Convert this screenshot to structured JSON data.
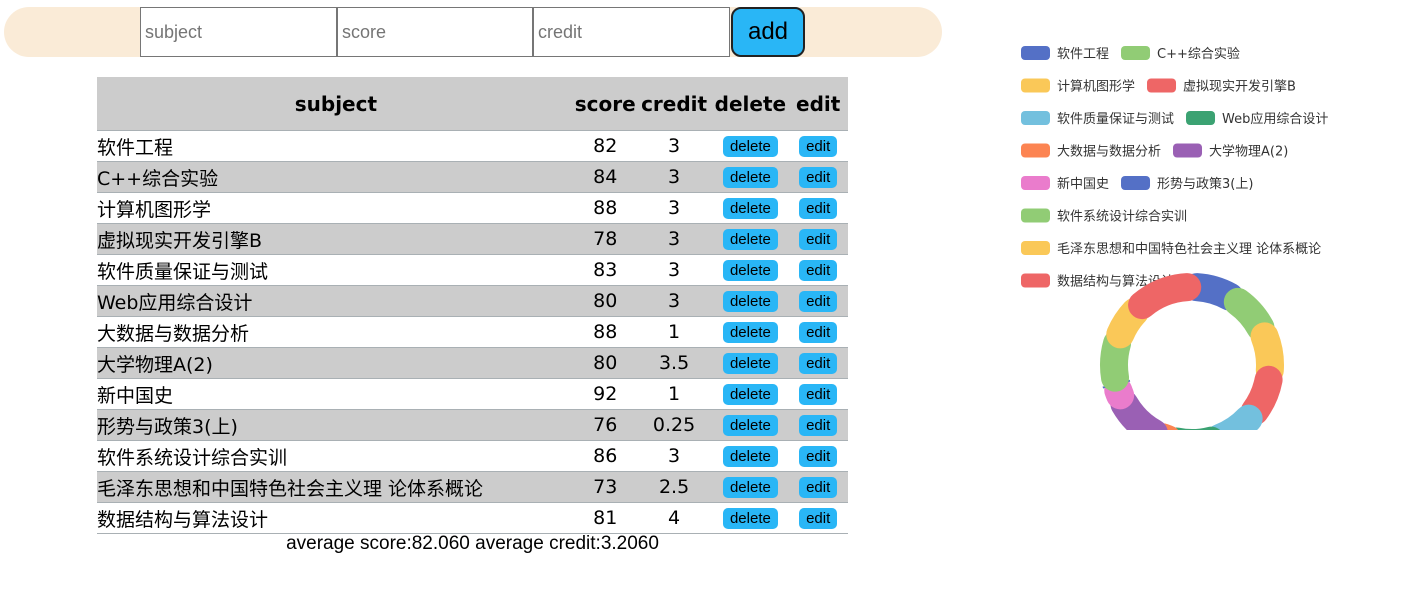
{
  "form": {
    "subject_placeholder": "subject",
    "score_placeholder": "score",
    "credit_placeholder": "credit",
    "add_label": "add"
  },
  "table": {
    "headers": {
      "subject": "subject",
      "score": "score",
      "credit": "credit",
      "delete": "delete",
      "edit": "edit"
    },
    "delete_label": "delete",
    "edit_label": "edit",
    "rows": [
      {
        "subject": "软件工程",
        "score": "82",
        "credit": "3"
      },
      {
        "subject": "C++综合实验",
        "score": "84",
        "credit": "3"
      },
      {
        "subject": "计算机图形学",
        "score": "88",
        "credit": "3"
      },
      {
        "subject": "虚拟现实开发引擎B",
        "score": "78",
        "credit": "3"
      },
      {
        "subject": "软件质量保证与测试",
        "score": "83",
        "credit": "3"
      },
      {
        "subject": "Web应用综合设计",
        "score": "80",
        "credit": "3"
      },
      {
        "subject": "大数据与数据分析",
        "score": "88",
        "credit": "1"
      },
      {
        "subject": "大学物理A(2)",
        "score": "80",
        "credit": "3.5"
      },
      {
        "subject": "新中国史",
        "score": "92",
        "credit": "1"
      },
      {
        "subject": "形势与政策3(上)",
        "score": "76",
        "credit": "0.25"
      },
      {
        "subject": "软件系统设计综合实训",
        "score": "86",
        "credit": "3"
      },
      {
        "subject": "毛泽东思想和中国特色社会主义理 论体系概论",
        "score": "73",
        "credit": "2.5"
      },
      {
        "subject": "数据结构与算法设计",
        "score": "81",
        "credit": "4"
      }
    ]
  },
  "summary": "average score:82.060 average credit:3.2060",
  "chart_data": {
    "type": "pie",
    "style": "donut with rounded segments",
    "legend_position": "top-right",
    "categories": [
      "软件工程",
      "C++综合实验",
      "计算机图形学",
      "虚拟现实开发引擎B",
      "软件质量保证与测试",
      "Web应用综合设计",
      "大数据与数据分析",
      "大学物理A(2)",
      "新中国史",
      "形势与政策3(上)",
      "软件系统设计综合实训",
      "毛泽东思想和中国特色社会主义理 论体系概论",
      "数据结构与算法设计"
    ],
    "values": [
      3,
      3,
      3,
      3,
      3,
      3,
      1,
      3.5,
      1,
      0.25,
      3,
      2.5,
      4
    ],
    "colors": [
      "#5470c6",
      "#91cc75",
      "#fac858",
      "#ee6666",
      "#73c0de",
      "#3ba272",
      "#fc8452",
      "#9a60b4",
      "#ea7ccc",
      "#5470c6",
      "#91cc75",
      "#fac858",
      "#ee6666"
    ]
  }
}
